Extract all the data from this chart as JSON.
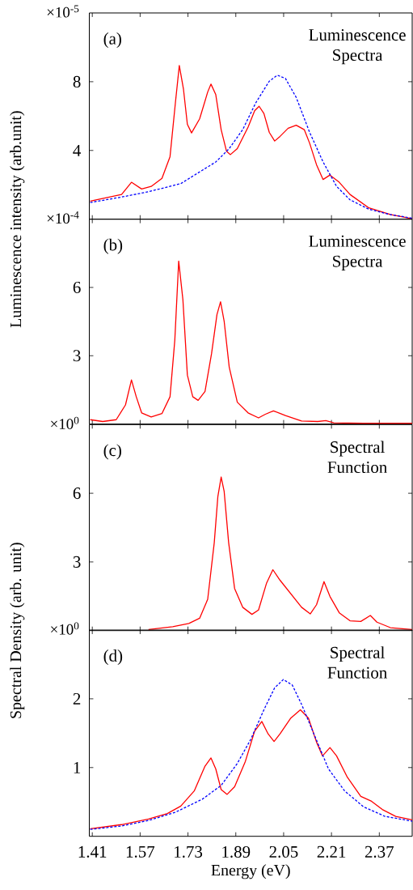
{
  "chart_data": [
    {
      "type": "line",
      "ylabel": "Luminescence intensity (arb.unit)",
      "annotations": [
        "×10$^{-5}$",
        "(a)",
        "Luminescence Spectra"
      ],
      "xlim": [
        1.4,
        2.48
      ],
      "ylim": [
        0,
        12
      ],
      "xticks": [
        1.41,
        1.57,
        1.73,
        1.89,
        2.05,
        2.21,
        2.37
      ],
      "yticks": [
        4,
        8
      ],
      "tick_labels": "y",
      "series": [
        {
          "color": "#ff0000",
          "line_style": "solid",
          "x": [
            1.403,
            1.508,
            1.541,
            1.575,
            1.607,
            1.643,
            1.67,
            1.688,
            1.701,
            1.715,
            1.728,
            1.742,
            1.769,
            1.796,
            1.807,
            1.823,
            1.841,
            1.859,
            1.872,
            1.895,
            1.931,
            1.953,
            1.968,
            1.984,
            2.002,
            2.02,
            2.038,
            2.065,
            2.092,
            2.119,
            2.137,
            2.16,
            2.182,
            2.205,
            2.236,
            2.272,
            2.335,
            2.407,
            2.48
          ],
          "values": [
            1.05,
            1.44,
            2.15,
            1.76,
            1.91,
            2.38,
            3.64,
            6.78,
            8.94,
            7.56,
            5.52,
            5.02,
            5.84,
            7.4,
            7.86,
            7.25,
            5.21,
            3.95,
            3.76,
            4.11,
            5.36,
            6.31,
            6.57,
            6.15,
            5.05,
            4.55,
            4.82,
            5.29,
            5.47,
            5.21,
            4.42,
            3.17,
            2.31,
            2.57,
            2.15,
            1.44,
            0.66,
            0.27,
            0.03
          ]
        },
        {
          "color": "#0000ff",
          "line_style": "dashed",
          "x": [
            1.403,
            1.508,
            1.598,
            1.706,
            1.778,
            1.823,
            1.868,
            1.913,
            1.957,
            2.002,
            2.029,
            2.056,
            2.092,
            2.137,
            2.182,
            2.227,
            2.272,
            2.335,
            2.407,
            2.48
          ],
          "values": [
            0.97,
            1.29,
            1.6,
            2.07,
            2.85,
            3.33,
            4.11,
            5.21,
            6.78,
            8.03,
            8.38,
            8.19,
            7.09,
            5.05,
            3.33,
            1.91,
            1.13,
            0.58,
            0.27,
            0.06
          ]
        }
      ]
    },
    {
      "type": "line",
      "annotations": [
        "×10$^{-4}$",
        "(b)",
        "Luminescence Spectra"
      ],
      "xlim": [
        1.4,
        2.48
      ],
      "ylim": [
        0,
        9
      ],
      "xticks": [
        1.41,
        1.57,
        1.73,
        1.89,
        2.05,
        2.21,
        2.37
      ],
      "yticks": [
        3,
        6
      ],
      "tick_labels": "y",
      "series": [
        {
          "color": "#ff0000",
          "line_style": "solid",
          "x": [
            1.403,
            1.445,
            1.49,
            1.521,
            1.541,
            1.557,
            1.575,
            1.607,
            1.643,
            1.67,
            1.686,
            1.699,
            1.713,
            1.728,
            1.746,
            1.764,
            1.787,
            1.809,
            1.827,
            1.839,
            1.851,
            1.868,
            1.895,
            1.931,
            1.966,
            1.989,
            2.016,
            2.056,
            2.11,
            2.164,
            2.191,
            2.218,
            2.317,
            2.48
          ],
          "values": [
            0.19,
            0.11,
            0.19,
            0.84,
            1.94,
            1.2,
            0.49,
            0.31,
            0.46,
            1.2,
            3.69,
            7.16,
            5.47,
            2.15,
            1.2,
            1.04,
            1.43,
            3.1,
            4.81,
            5.37,
            4.52,
            2.5,
            0.96,
            0.49,
            0.27,
            0.43,
            0.58,
            0.37,
            0.13,
            0.11,
            0.15,
            0.05,
            0.03,
            0.03
          ]
        }
      ]
    },
    {
      "type": "line",
      "ylabel": "Spectral Density (arb. unit)",
      "annotations": [
        "×10$^{0}$",
        "(c)",
        "Spectral Function"
      ],
      "xlim": [
        1.4,
        2.48
      ],
      "ylim": [
        0,
        9
      ],
      "xticks": [
        1.41,
        1.57,
        1.73,
        1.89,
        2.05,
        2.21,
        2.37
      ],
      "yticks": [
        3,
        6
      ],
      "tick_labels": "y",
      "series": [
        {
          "color": "#ff0000",
          "line_style": "solid",
          "x": [
            1.598,
            1.679,
            1.706,
            1.733,
            1.769,
            1.796,
            1.818,
            1.83,
            1.841,
            1.851,
            1.866,
            1.886,
            1.913,
            1.944,
            1.966,
            1.993,
            2.014,
            2.038,
            2.074,
            2.11,
            2.139,
            2.16,
            2.185,
            2.205,
            2.236,
            2.272,
            2.308,
            2.34,
            2.362,
            2.407,
            2.48
          ],
          "values": [
            0.05,
            0.17,
            0.24,
            0.31,
            0.54,
            1.37,
            3.85,
            5.86,
            6.71,
            6.09,
            3.85,
            1.84,
            1.02,
            0.71,
            0.9,
            2.08,
            2.66,
            2.2,
            1.61,
            1.02,
            0.73,
            1.13,
            2.14,
            1.49,
            0.78,
            0.43,
            0.4,
            0.66,
            0.37,
            0.13,
            0.05
          ]
        }
      ]
    },
    {
      "type": "line",
      "xlabel": "Energy (eV)",
      "annotations": [
        "×10$^{0}$",
        "(d)",
        "Spectral Function"
      ],
      "xlim": [
        1.4,
        2.48
      ],
      "ylim": [
        0,
        3
      ],
      "xticks": [
        1.41,
        1.57,
        1.73,
        1.89,
        2.05,
        2.21,
        2.37
      ],
      "yticks": [
        1,
        2
      ],
      "series": [
        {
          "color": "#ff0000",
          "line_style": "solid",
          "x": [
            1.403,
            1.508,
            1.598,
            1.661,
            1.706,
            1.751,
            1.787,
            1.807,
            1.823,
            1.841,
            1.861,
            1.886,
            1.922,
            1.953,
            1.977,
            1.998,
            2.018,
            2.038,
            2.074,
            2.106,
            2.133,
            2.16,
            2.18,
            2.205,
            2.227,
            2.263,
            2.308,
            2.344,
            2.38,
            2.425,
            2.48
          ],
          "values": [
            0.11,
            0.17,
            0.25,
            0.33,
            0.44,
            0.66,
            1.02,
            1.14,
            0.98,
            0.68,
            0.61,
            0.72,
            1.09,
            1.53,
            1.67,
            1.49,
            1.38,
            1.49,
            1.72,
            1.84,
            1.72,
            1.37,
            1.17,
            1.29,
            1.17,
            0.86,
            0.58,
            0.51,
            0.39,
            0.29,
            0.24
          ]
        },
        {
          "color": "#0000ff",
          "line_style": "dashed",
          "x": [
            1.403,
            1.508,
            1.598,
            1.688,
            1.778,
            1.841,
            1.895,
            1.94,
            1.984,
            2.02,
            2.049,
            2.079,
            2.11,
            2.155,
            2.2,
            2.254,
            2.317,
            2.389,
            2.48
          ],
          "values": [
            0.1,
            0.15,
            0.23,
            0.35,
            0.54,
            0.74,
            1.06,
            1.41,
            1.84,
            2.16,
            2.28,
            2.2,
            1.92,
            1.45,
            0.98,
            0.66,
            0.43,
            0.29,
            0.22
          ]
        }
      ]
    }
  ]
}
